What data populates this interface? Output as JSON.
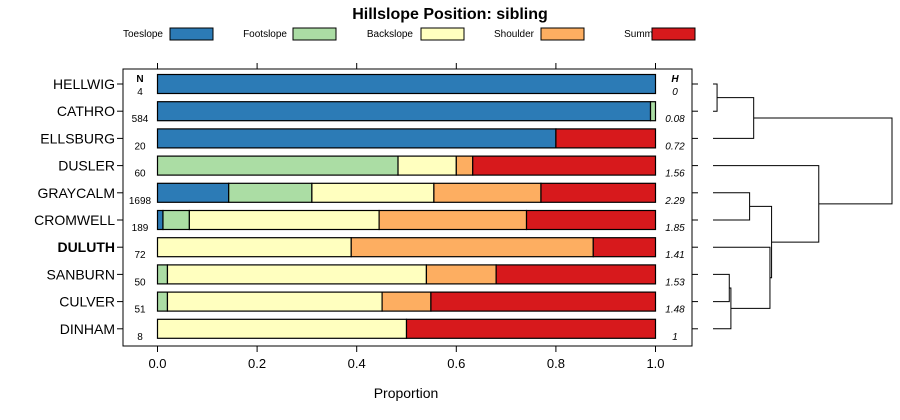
{
  "chart_data": {
    "type": "bar",
    "orientation": "horizontal",
    "stacked": true,
    "title": "Hillslope Position: sibling",
    "xlabel": "Proportion",
    "ylabel": "",
    "xlim": [
      0,
      1
    ],
    "x_ticks": [
      0.0,
      0.2,
      0.4,
      0.6,
      0.8,
      1.0
    ],
    "x_tick_labels": [
      "0.0",
      "0.2",
      "0.4",
      "0.6",
      "0.8",
      "1.0"
    ],
    "n_header": "N",
    "h_header": "H",
    "legend_position": "top",
    "series": [
      {
        "name": "Toeslope",
        "color": "#2c7bb6"
      },
      {
        "name": "Footslope",
        "color": "#abdda4"
      },
      {
        "name": "Backslope",
        "color": "#ffffbf"
      },
      {
        "name": "Shoulder",
        "color": "#fdae61"
      },
      {
        "name": "Summit",
        "color": "#d7191c"
      }
    ],
    "categories": [
      {
        "name": "HELLWIG",
        "n": "4",
        "h": "0",
        "bold": false,
        "values": [
          1.0,
          0.0,
          0.0,
          0.0,
          0.0
        ]
      },
      {
        "name": "CATHRO",
        "n": "584",
        "h": "0.08",
        "bold": false,
        "values": [
          0.99,
          0.01,
          0.0,
          0.0,
          0.0
        ]
      },
      {
        "name": "ELLSBURG",
        "n": "20",
        "h": "0.72",
        "bold": false,
        "values": [
          0.8,
          0.0,
          0.0,
          0.0,
          0.2
        ]
      },
      {
        "name": "DUSLER",
        "n": "60",
        "h": "1.56",
        "bold": false,
        "values": [
          0.0,
          0.483,
          0.117,
          0.033,
          0.367
        ]
      },
      {
        "name": "GRAYCALM",
        "n": "1698",
        "h": "2.29",
        "bold": false,
        "values": [
          0.143,
          0.167,
          0.245,
          0.215,
          0.23
        ]
      },
      {
        "name": "CROMWELL",
        "n": "189",
        "h": "1.85",
        "bold": false,
        "values": [
          0.011,
          0.053,
          0.381,
          0.296,
          0.259
        ]
      },
      {
        "name": "DULUTH",
        "n": "72",
        "h": "1.41",
        "bold": true,
        "values": [
          0.0,
          0.0,
          0.389,
          0.486,
          0.125
        ]
      },
      {
        "name": "SANBURN",
        "n": "50",
        "h": "1.53",
        "bold": false,
        "values": [
          0.0,
          0.02,
          0.52,
          0.14,
          0.32
        ]
      },
      {
        "name": "CULVER",
        "n": "51",
        "h": "1.48",
        "bold": false,
        "values": [
          0.0,
          0.02,
          0.431,
          0.098,
          0.451
        ]
      },
      {
        "name": "DINHAM",
        "n": "8",
        "h": "1",
        "bold": false,
        "values": [
          0.0,
          0.0,
          0.5,
          0.0,
          0.5
        ]
      }
    ],
    "dendrogram": {
      "merges": [
        {
          "a": "HELLWIG",
          "b": "CATHRO",
          "height": 0.05
        },
        {
          "a": "m0",
          "b": "ELLSBURG",
          "height": 0.5
        },
        {
          "a": "SANBURN",
          "b": "CULVER",
          "height": 0.2
        },
        {
          "a": "GRAYCALM",
          "b": "CROMWELL",
          "height": 0.45
        },
        {
          "a": "m2",
          "b": "DINHAM",
          "height": 0.22
        },
        {
          "a": "m4",
          "b": "DULUTH",
          "height": 0.7
        },
        {
          "a": "m3",
          "b": "m5",
          "height": 0.72
        },
        {
          "a": "DUSLER",
          "b": "m6",
          "height": 1.3
        },
        {
          "a": "m1",
          "b": "m7",
          "height": 2.2
        }
      ],
      "max_height": 2.2
    }
  }
}
